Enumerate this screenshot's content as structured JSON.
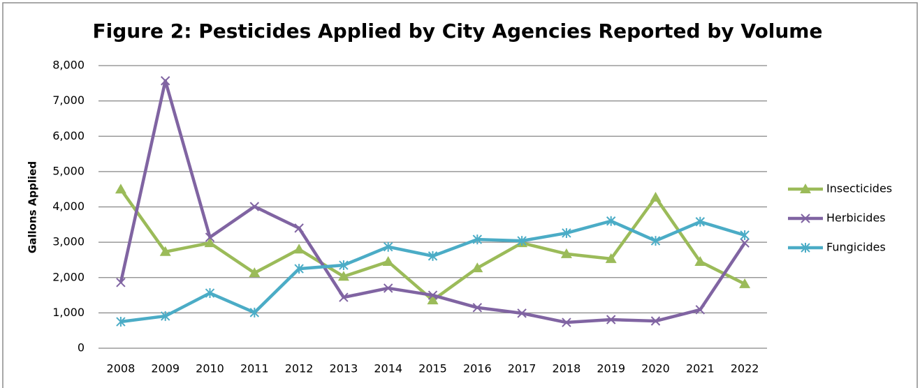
{
  "chart_data": {
    "type": "line",
    "title": "Figure 2: Pesticides Applied by City Agencies Reported by Volume",
    "y_label": "Gallons Applied",
    "categories": [
      "2008",
      "2009",
      "2010",
      "2011",
      "2012",
      "2013",
      "2014",
      "2015",
      "2016",
      "2017",
      "2018",
      "2019",
      "2020",
      "2021",
      "2022"
    ],
    "series": [
      {
        "name": "Insecticides",
        "color": "#9bbb59",
        "marker": "triangle",
        "values": [
          4500,
          2730,
          2980,
          2130,
          2800,
          2030,
          2450,
          1360,
          2270,
          2980,
          2670,
          2530,
          4270,
          2450,
          1820
        ]
      },
      {
        "name": "Herbicides",
        "color": "#8064a2",
        "marker": "x",
        "values": [
          1860,
          7570,
          3140,
          4010,
          3400,
          1440,
          1700,
          1500,
          1150,
          990,
          730,
          810,
          770,
          1090,
          2980
        ]
      },
      {
        "name": "Fungicides",
        "color": "#4bacc6",
        "marker": "star",
        "values": [
          750,
          910,
          1560,
          1010,
          2250,
          2350,
          2870,
          2610,
          3080,
          3040,
          3260,
          3600,
          3040,
          3580,
          3200
        ]
      }
    ],
    "ylim": [
      0,
      8000
    ],
    "yticks": [
      0,
      {
        "value": 1000,
        "label": "1,000"
      },
      {
        "value": 2000,
        "label": "2,000"
      },
      {
        "value": 3000,
        "label": "3,000"
      },
      {
        "value": 4000,
        "label": "4,000"
      },
      {
        "value": 5000,
        "label": "5,000"
      },
      {
        "value": 6000,
        "label": "6,000"
      },
      {
        "value": 7000,
        "label": "7,000"
      },
      {
        "value": 8000,
        "label": "8,000"
      }
    ],
    "grid": true,
    "legend": "right"
  }
}
